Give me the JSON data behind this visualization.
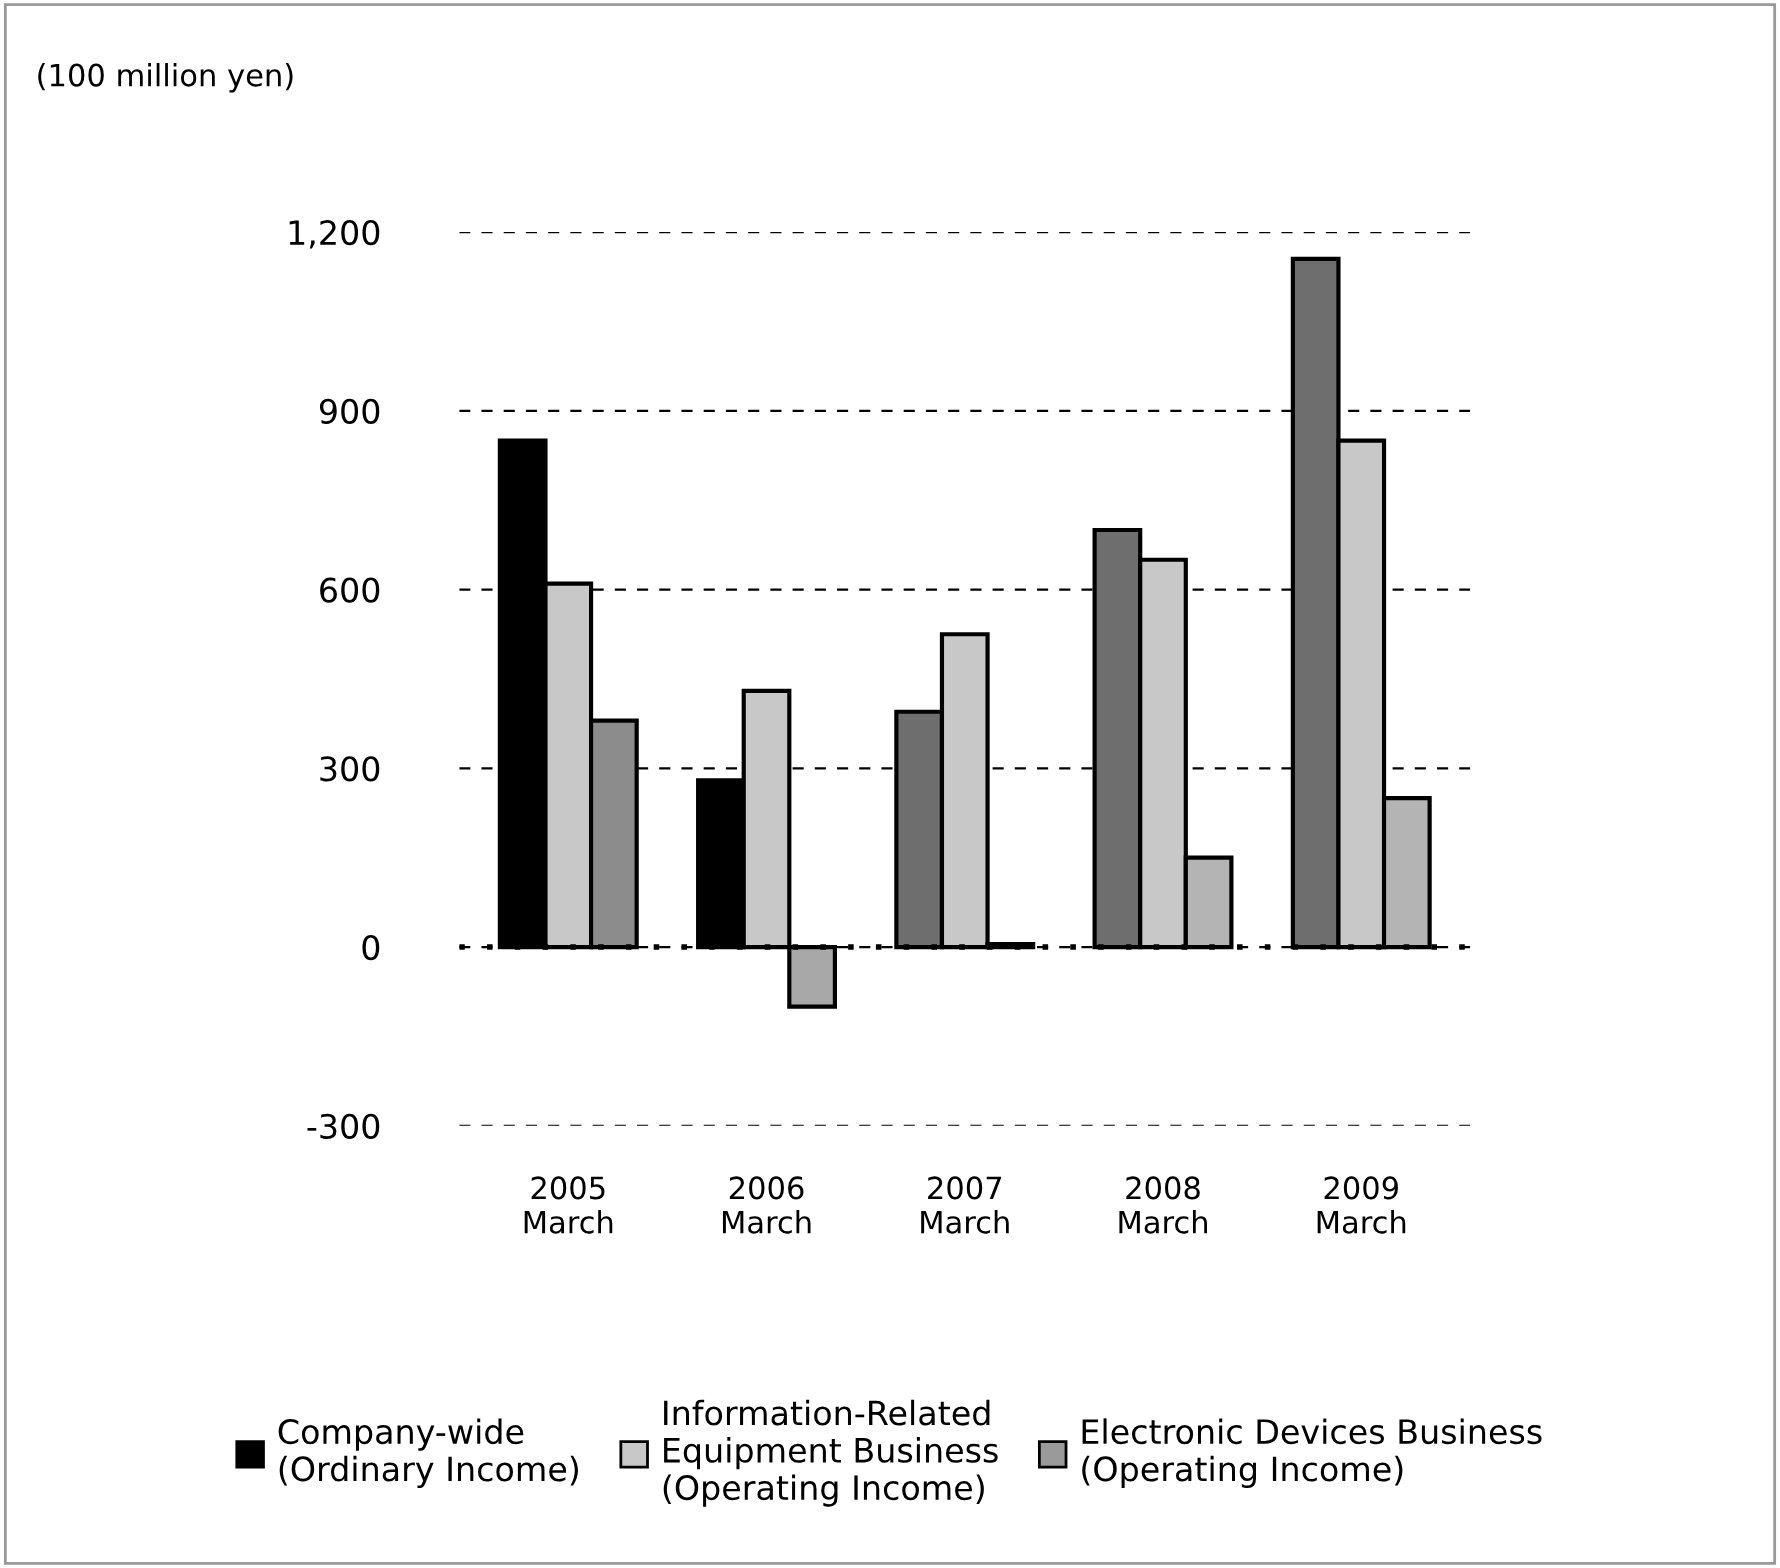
{
  "chart_data": {
    "type": "bar",
    "ylabel": "(100 million yen)",
    "categories": [
      "2005\nMarch",
      "2006\nMarch",
      "2007\nMarch",
      "2008\nMarch",
      "2009\nMarch"
    ],
    "series": [
      {
        "name": "Company-wide\n(Ordinary Income)",
        "color": "#000000",
        "colors": [
          "#000000",
          "#000000",
          "#6e6e6e",
          "#6e6e6e",
          "#6e6e6e"
        ],
        "values": [
          850,
          280,
          395,
          700,
          1155
        ]
      },
      {
        "name": "Information-Related\nEquipment Business\n(Operating Income)",
        "color": "#c8c8c8",
        "values": [
          610,
          430,
          525,
          650,
          850
        ]
      },
      {
        "name": "Electronic Devices Business\n(Operating Income)",
        "color": "#9a9a9a",
        "colors": [
          "#8c8c8c",
          "#a8a8a8",
          "#a8a8a8",
          "#b4b4b4",
          "#b4b4b4"
        ],
        "values": [
          380,
          -100,
          5,
          150,
          250
        ]
      }
    ],
    "ylim": [
      -300,
      1200
    ],
    "yticks": [
      {
        "value": -300,
        "label": "-300"
      },
      0,
      300,
      600,
      900,
      {
        "value": 1200,
        "label": "1,200"
      }
    ],
    "ref_lines": [
      {
        "axis": "y",
        "value": 0,
        "color": "#000000",
        "line_style": "dotted"
      }
    ],
    "grid": "y",
    "legend": "bottom"
  }
}
